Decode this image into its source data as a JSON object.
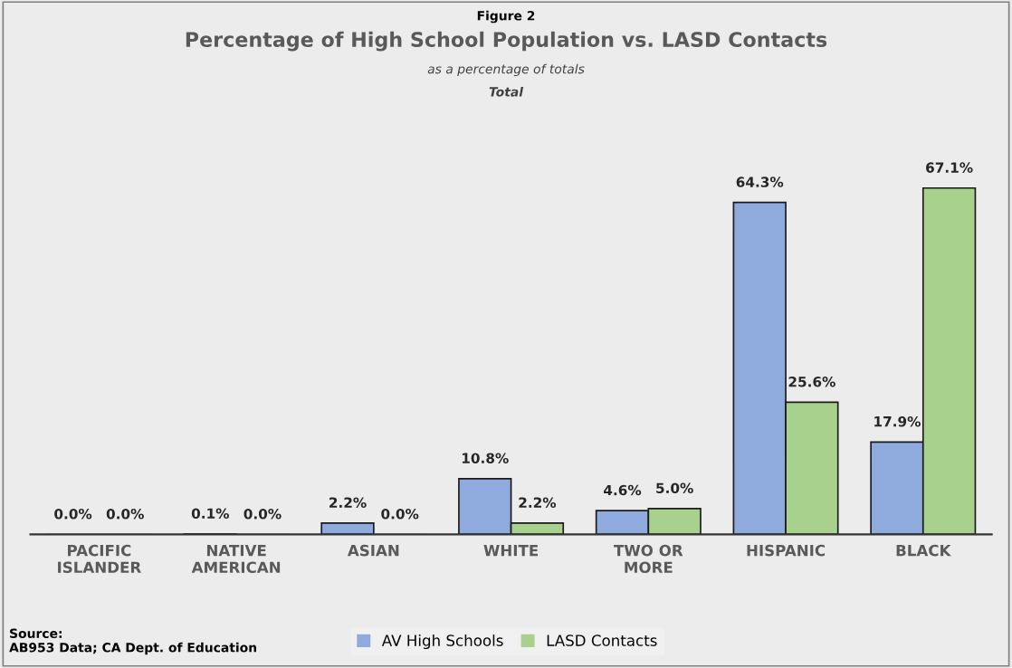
{
  "chart_data": {
    "type": "bar",
    "title": "Percentage of High School Population vs. LASD Contacts",
    "subtitle": "as a percentage of totals",
    "annotations": [
      "Figure 2",
      "Total",
      "Source:\nAB953 Data; CA Dept. of Education"
    ],
    "categories": [
      "PACIFIC\nISLANDER",
      "NATIVE\nAMERICAN",
      "ASIAN",
      "WHITE",
      "TWO OR\nMORE",
      "HISPANIC",
      "BLACK"
    ],
    "series": [
      {
        "name": "AV High Schools",
        "color": "#8faadc",
        "values": [
          0.0,
          0.1,
          2.2,
          10.8,
          4.6,
          64.3,
          17.9
        ],
        "value_labels": [
          "0.0%",
          "0.1%",
          "2.2%",
          "10.8%",
          "4.6%",
          "64.3%",
          "17.9%"
        ]
      },
      {
        "name": "LASD Contacts",
        "color": "#a9d18e",
        "values": [
          0.0,
          0.0,
          0.0,
          2.2,
          5.0,
          25.6,
          67.1
        ],
        "value_labels": [
          "0.0%",
          "0.0%",
          "0.0%",
          "2.2%",
          "5.0%",
          "25.6%",
          "67.1%"
        ]
      }
    ],
    "grid": false,
    "legend": "bottom"
  }
}
